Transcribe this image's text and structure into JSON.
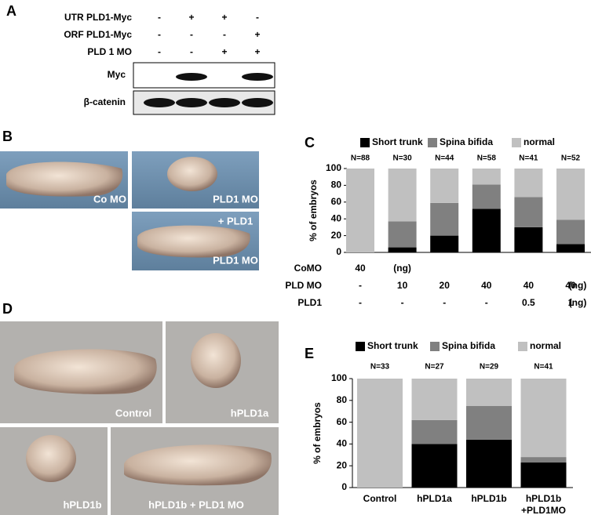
{
  "panel_labels": [
    "A",
    "B",
    "C",
    "D",
    "E"
  ],
  "blot": {
    "conditions": [
      {
        "label": "UTR PLD1-Myc",
        "signs": [
          "-",
          "+",
          "+",
          "-"
        ]
      },
      {
        "label": "ORF PLD1-Myc",
        "signs": [
          "-",
          "-",
          "-",
          "+"
        ]
      },
      {
        "label": "PLD 1 MO",
        "signs": [
          "-",
          "-",
          "+",
          "+"
        ]
      }
    ],
    "rows": [
      "Myc",
      "β-catenin"
    ]
  },
  "images_b": [
    [
      "Co MO"
    ],
    [
      "PLD1 MO"
    ],
    [
      "+ PLD1",
      "PLD1 MO"
    ]
  ],
  "images_d": [
    [
      "Control"
    ],
    [
      "hPLD1a"
    ],
    [
      "hPLD1b"
    ],
    [
      "hPLD1b + PLD1 MO"
    ]
  ],
  "chart_data": [
    {
      "type": "stacked_bar",
      "ylabel": "% of embryos",
      "categories": [
        null,
        null,
        null,
        null,
        null,
        null
      ],
      "n_labels": [
        "N=88",
        "N=30",
        "N=44",
        "N=58",
        "N=41",
        "N=52"
      ],
      "series": [
        {
          "name": "Short trunk",
          "color": "#000000",
          "values": [
            0,
            6,
            20,
            52,
            30,
            10
          ]
        },
        {
          "name": "Spina bifida",
          "color": "#808080",
          "values": [
            0,
            31,
            39,
            29,
            36,
            29
          ]
        },
        {
          "name": "normal",
          "color": "#c0c0c0",
          "values": [
            100,
            63,
            41,
            19,
            34,
            61
          ]
        }
      ],
      "ylim": [
        0,
        100
      ],
      "yticks": [
        0,
        20,
        40,
        60,
        80,
        100
      ],
      "condition_rows": [
        {
          "label": "CoMO",
          "cells": [
            "40",
            "(ng)"
          ]
        },
        {
          "label": "PLD MO",
          "cells": [
            "-",
            "10",
            "20",
            "40",
            "40",
            "40",
            "(ng)"
          ]
        },
        {
          "label": "PLD1",
          "cells": [
            "-",
            "-",
            "-",
            "-",
            "0.5",
            "1",
            "(ng)"
          ]
        }
      ]
    },
    {
      "type": "stacked_bar",
      "ylabel": "% of embryos",
      "categories": [
        "Control",
        "hPLD1a",
        "hPLD1b",
        "hPLD1b\n+PLD1MO"
      ],
      "n_labels": [
        "N=33",
        "N=27",
        "N=29",
        "N=41"
      ],
      "series": [
        {
          "name": "Short trunk",
          "color": "#000000",
          "values": [
            0,
            40,
            44,
            23
          ]
        },
        {
          "name": "Spina bifida",
          "color": "#808080",
          "values": [
            0,
            22,
            31,
            5
          ]
        },
        {
          "name": "normal",
          "color": "#c0c0c0",
          "values": [
            100,
            38,
            25,
            72
          ]
        }
      ],
      "ylim": [
        0,
        100
      ],
      "yticks": [
        0,
        20,
        40,
        60,
        80,
        100
      ]
    }
  ]
}
